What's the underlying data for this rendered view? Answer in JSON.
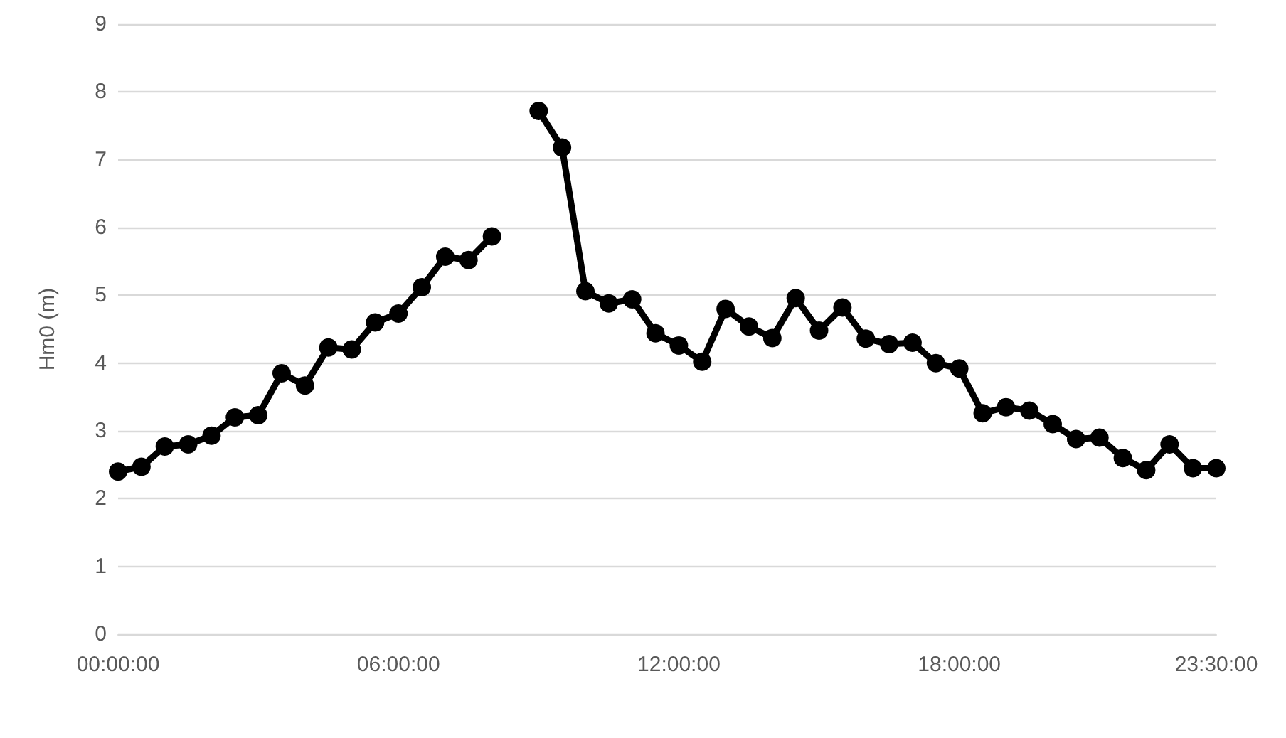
{
  "chart_data": {
    "type": "line",
    "ylabel": "Hm0 (m)",
    "x": [
      0,
      0.5,
      1,
      1.5,
      2,
      2.5,
      3,
      3.5,
      4,
      4.5,
      5,
      5.5,
      6,
      6.5,
      7,
      7.5,
      8,
      8.5,
      9,
      9.5,
      10,
      10.5,
      11,
      11.5,
      12,
      12.5,
      13,
      13.5,
      14,
      14.5,
      15,
      15.5,
      16,
      16.5,
      17,
      17.5,
      18,
      18.5,
      19,
      19.5,
      20,
      20.5,
      21,
      21.5,
      22,
      22.5,
      23,
      23.5
    ],
    "series": [
      {
        "color": "#000000",
        "values": [
          2.4,
          2.47,
          2.77,
          2.8,
          2.93,
          3.2,
          3.23,
          3.85,
          3.67,
          4.23,
          4.2,
          4.6,
          4.73,
          5.12,
          5.57,
          5.52,
          5.87,
          null,
          7.72,
          7.18,
          5.06,
          4.88,
          4.94,
          4.44,
          4.26,
          4.02,
          4.8,
          4.54,
          4.37,
          4.96,
          4.48,
          4.82,
          4.36,
          4.28,
          4.3,
          4.0,
          3.92,
          3.26,
          3.35,
          3.3,
          3.1,
          2.88,
          2.9,
          2.6,
          2.42,
          2.8,
          2.45,
          2.45
        ]
      }
    ],
    "xlim": [
      0,
      23.5
    ],
    "xticks": [
      {
        "value": 0,
        "label": "00:00:00"
      },
      {
        "value": 6,
        "label": "06:00:00"
      },
      {
        "value": 12,
        "label": "12:00:00"
      },
      {
        "value": 18,
        "label": "18:00:00"
      },
      {
        "value": 23.5,
        "label": "23:30:00"
      }
    ],
    "ylim": [
      0,
      9
    ],
    "yticks": [
      0,
      1,
      2,
      3,
      4,
      5,
      6,
      7,
      8,
      9
    ],
    "grid": "y",
    "marker": "circle",
    "line_style": "solid"
  }
}
